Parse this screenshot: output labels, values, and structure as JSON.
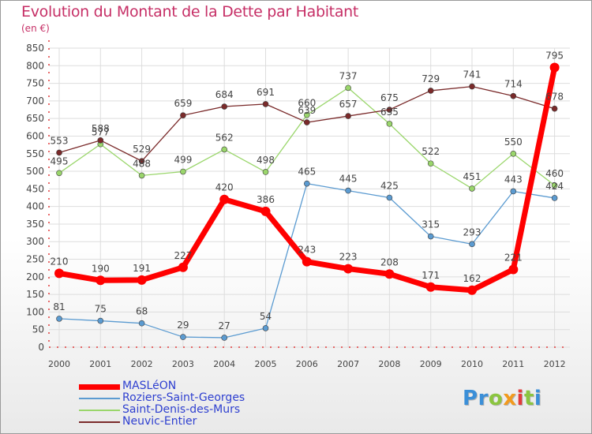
{
  "title": "Evolution du Montant de la Dette par Habitant",
  "unit": "(en €)",
  "logo": {
    "text": "Proxiti",
    "letters": [
      {
        "ch": "P",
        "color": "#3b8fd8"
      },
      {
        "ch": "r",
        "color": "#3b8fd8"
      },
      {
        "ch": "o",
        "color": "#8bc53f"
      },
      {
        "ch": "x",
        "color": "#f29a1d"
      },
      {
        "ch": "i",
        "color": "#e23b3b"
      },
      {
        "ch": "t",
        "color": "#8bc53f"
      },
      {
        "ch": "i",
        "color": "#3b8fd8"
      }
    ]
  },
  "chart_data": {
    "type": "line",
    "title": "Evolution du Montant de la Dette par Habitant",
    "ylabel": "(en €)",
    "xlabel": "",
    "x": [
      "2000",
      "2001",
      "2002",
      "2003",
      "2004",
      "2005",
      "2006",
      "2007",
      "2008",
      "2009",
      "2010",
      "2011",
      "2012"
    ],
    "ylim": [
      0,
      850
    ],
    "yticks": [
      0,
      50,
      100,
      150,
      200,
      250,
      300,
      350,
      400,
      450,
      500,
      550,
      600,
      650,
      700,
      750,
      800,
      850
    ],
    "grid": true,
    "legend_position": "bottom-left",
    "series": [
      {
        "name": "MASLéON",
        "color": "#ff0000",
        "width": 7,
        "marker_r": 6,
        "values": [
          210,
          190,
          191,
          227,
          420,
          386,
          243,
          223,
          208,
          171,
          162,
          221,
          795
        ]
      },
      {
        "name": "Roziers-Saint-Georges",
        "color": "#5b9bd1",
        "width": 1.3,
        "marker_r": 3.5,
        "values": [
          81,
          75,
          68,
          29,
          27,
          54,
          465,
          445,
          425,
          315,
          293,
          443,
          424
        ]
      },
      {
        "name": "Saint-Denis-des-Murs",
        "color": "#9ad66b",
        "width": 1.3,
        "marker_r": 3.5,
        "values": [
          495,
          577,
          488,
          499,
          562,
          498,
          660,
          737,
          635,
          522,
          451,
          550,
          460
        ]
      },
      {
        "name": "Neuvic-Entier",
        "color": "#7a2a2a",
        "width": 1.3,
        "marker_r": 3.5,
        "values": [
          553,
          588,
          529,
          659,
          684,
          691,
          639,
          657,
          675,
          729,
          741,
          714,
          678
        ]
      }
    ]
  }
}
